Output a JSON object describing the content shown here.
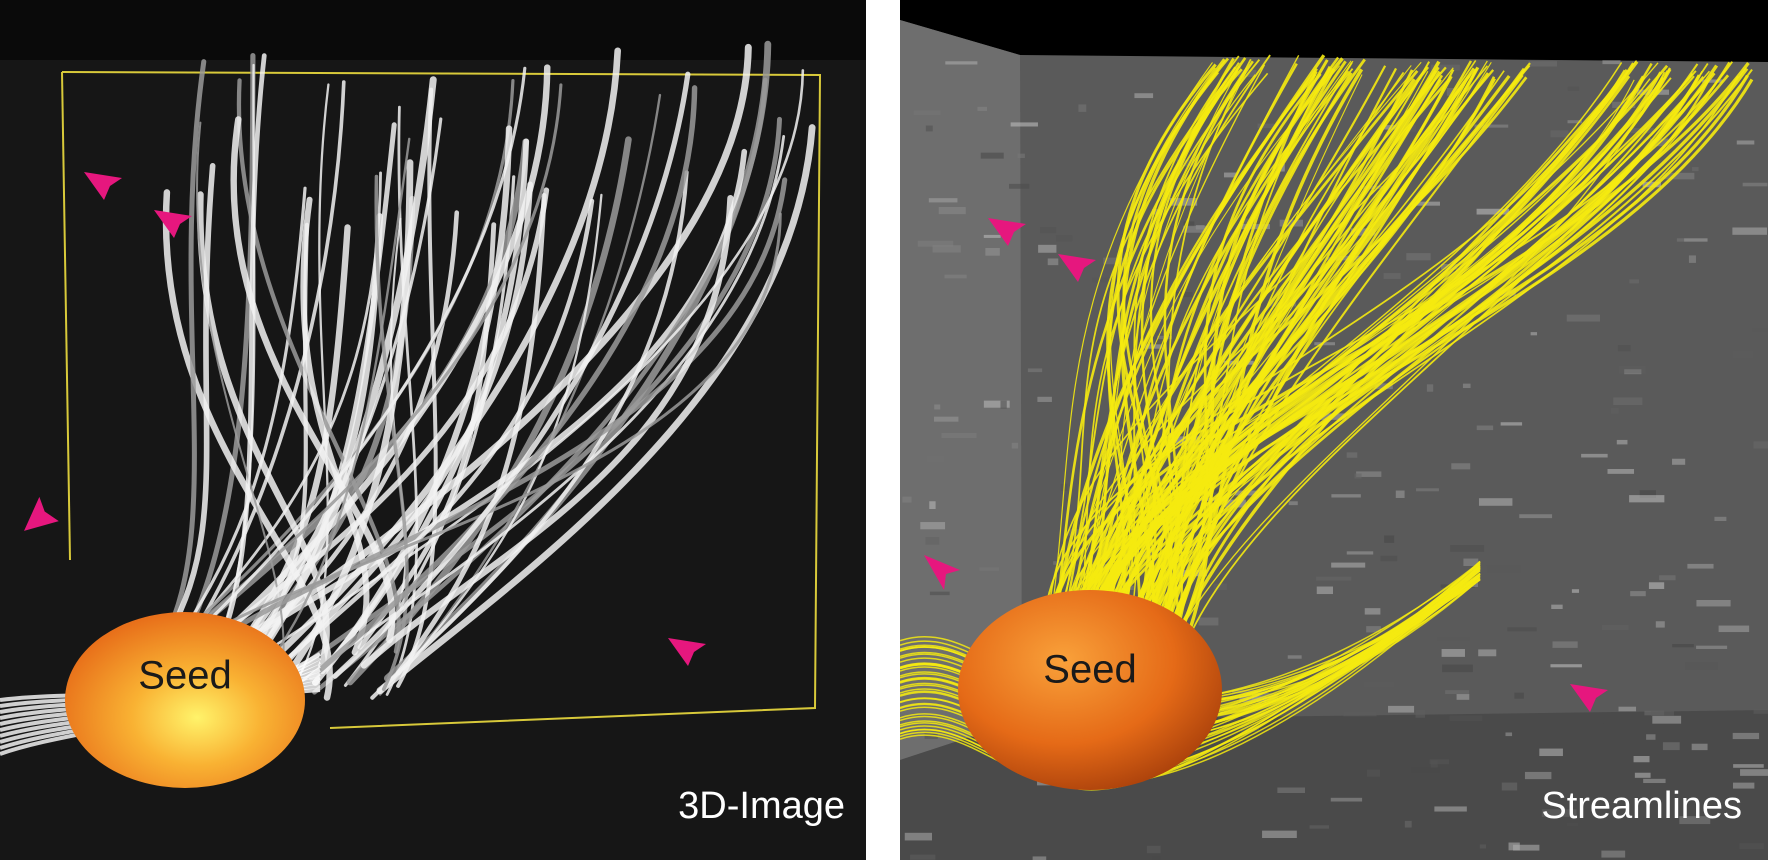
{
  "panels": [
    {
      "label": "3D-Image",
      "seed_label": "Seed"
    },
    {
      "label": "Streamlines",
      "seed_label": "Seed"
    }
  ]
}
